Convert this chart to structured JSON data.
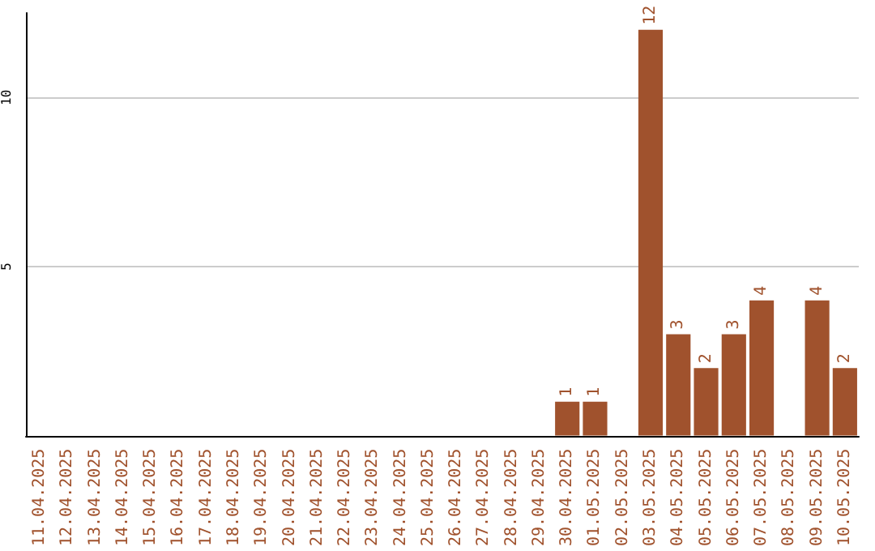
{
  "chart_data": {
    "type": "bar",
    "categories": [
      "11.04.2025",
      "12.04.2025",
      "13.04.2025",
      "14.04.2025",
      "15.04.2025",
      "16.04.2025",
      "17.04.2025",
      "18.04.2025",
      "19.04.2025",
      "20.04.2025",
      "21.04.2025",
      "22.04.2025",
      "23.04.2025",
      "24.04.2025",
      "25.04.2025",
      "26.04.2025",
      "27.04.2025",
      "28.04.2025",
      "29.04.2025",
      "30.04.2025",
      "01.05.2025",
      "02.05.2025",
      "03.05.2025",
      "04.05.2025",
      "05.05.2025",
      "06.05.2025",
      "07.05.2025",
      "08.05.2025",
      "09.05.2025",
      "10.05.2025"
    ],
    "values": [
      0,
      0,
      0,
      0,
      0,
      0,
      0,
      0,
      0,
      0,
      0,
      0,
      0,
      0,
      0,
      0,
      0,
      0,
      0,
      1,
      1,
      0,
      12,
      3,
      2,
      3,
      4,
      0,
      4,
      2
    ],
    "value_labels": [
      null,
      null,
      null,
      null,
      null,
      null,
      null,
      null,
      null,
      null,
      null,
      null,
      null,
      null,
      null,
      null,
      null,
      null,
      null,
      "1",
      "1",
      null,
      "12",
      "3",
      "2",
      "3",
      "4",
      null,
      "4",
      "2"
    ],
    "color": "#a0522d",
    "ylim": [
      0,
      12.5
    ],
    "yticks": [
      5,
      10
    ],
    "grid": "y"
  }
}
